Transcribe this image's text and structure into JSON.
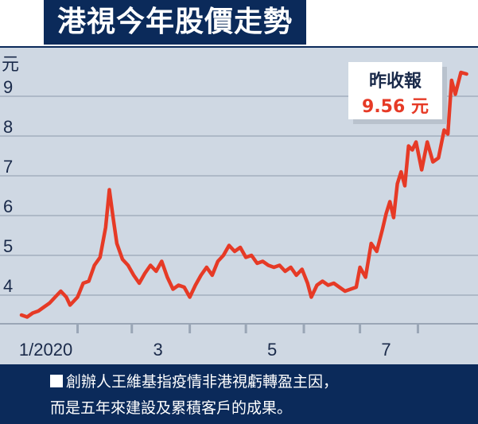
{
  "chart_data": {
    "type": "line",
    "title": "港視今年股價走勢",
    "ylabel": "元",
    "xlabel": "",
    "ylim": [
      3.3,
      10.0
    ],
    "yticks": [
      4,
      5,
      6,
      7,
      8,
      9
    ],
    "xlim": [
      "2020-01-02",
      "2020-08-31"
    ],
    "xticks": [
      {
        "date": "2020-01-15",
        "label": "1/2020"
      },
      {
        "date": "2020-03-15",
        "label": "3"
      },
      {
        "date": "2020-05-15",
        "label": "5"
      },
      {
        "date": "2020-07-15",
        "label": "7"
      }
    ],
    "grid": true,
    "series": [
      {
        "name": "",
        "color": "#e63a26",
        "points": [
          [
            "2020-01-02",
            3.5
          ],
          [
            "2020-01-05",
            3.45
          ],
          [
            "2020-01-08",
            3.55
          ],
          [
            "2020-01-11",
            3.6
          ],
          [
            "2020-01-14",
            3.7
          ],
          [
            "2020-01-17",
            3.8
          ],
          [
            "2020-01-20",
            3.95
          ],
          [
            "2020-01-23",
            4.1
          ],
          [
            "2020-01-26",
            3.95
          ],
          [
            "2020-01-28",
            3.75
          ],
          [
            "2020-02-01",
            3.95
          ],
          [
            "2020-02-04",
            4.3
          ],
          [
            "2020-02-07",
            4.35
          ],
          [
            "2020-02-10",
            4.75
          ],
          [
            "2020-02-13",
            4.95
          ],
          [
            "2020-02-16",
            5.7
          ],
          [
            "2020-02-18",
            6.65
          ],
          [
            "2020-02-20",
            5.95
          ],
          [
            "2020-02-22",
            5.3
          ],
          [
            "2020-02-25",
            4.9
          ],
          [
            "2020-02-28",
            4.75
          ],
          [
            "2020-03-02",
            4.5
          ],
          [
            "2020-03-05",
            4.3
          ],
          [
            "2020-03-08",
            4.55
          ],
          [
            "2020-03-11",
            4.75
          ],
          [
            "2020-03-14",
            4.6
          ],
          [
            "2020-03-17",
            4.85
          ],
          [
            "2020-03-20",
            4.45
          ],
          [
            "2020-03-23",
            4.15
          ],
          [
            "2020-03-26",
            4.25
          ],
          [
            "2020-03-29",
            4.2
          ],
          [
            "2020-04-01",
            3.95
          ],
          [
            "2020-04-04",
            4.25
          ],
          [
            "2020-04-07",
            4.5
          ],
          [
            "2020-04-10",
            4.7
          ],
          [
            "2020-04-13",
            4.5
          ],
          [
            "2020-04-16",
            4.85
          ],
          [
            "2020-04-19",
            5.0
          ],
          [
            "2020-04-22",
            5.25
          ],
          [
            "2020-04-25",
            5.1
          ],
          [
            "2020-04-28",
            5.2
          ],
          [
            "2020-05-01",
            4.95
          ],
          [
            "2020-05-04",
            5.0
          ],
          [
            "2020-05-07",
            4.8
          ],
          [
            "2020-05-10",
            4.85
          ],
          [
            "2020-05-13",
            4.75
          ],
          [
            "2020-05-16",
            4.7
          ],
          [
            "2020-05-19",
            4.75
          ],
          [
            "2020-05-22",
            4.6
          ],
          [
            "2020-05-25",
            4.7
          ],
          [
            "2020-05-28",
            4.5
          ],
          [
            "2020-05-31",
            4.65
          ],
          [
            "2020-06-03",
            4.3
          ],
          [
            "2020-06-05",
            3.95
          ],
          [
            "2020-06-08",
            4.25
          ],
          [
            "2020-06-11",
            4.35
          ],
          [
            "2020-06-14",
            4.25
          ],
          [
            "2020-06-17",
            4.3
          ],
          [
            "2020-06-20",
            4.2
          ],
          [
            "2020-06-23",
            4.1
          ],
          [
            "2020-06-26",
            4.15
          ],
          [
            "2020-06-29",
            4.2
          ],
          [
            "2020-07-01",
            4.7
          ],
          [
            "2020-07-04",
            4.45
          ],
          [
            "2020-07-07",
            5.3
          ],
          [
            "2020-07-10",
            5.1
          ],
          [
            "2020-07-13",
            5.65
          ],
          [
            "2020-07-15",
            6.05
          ],
          [
            "2020-07-17",
            6.35
          ],
          [
            "2020-07-19",
            5.95
          ],
          [
            "2020-07-21",
            6.8
          ],
          [
            "2020-07-23",
            7.1
          ],
          [
            "2020-07-25",
            6.75
          ],
          [
            "2020-07-27",
            7.75
          ],
          [
            "2020-07-29",
            7.65
          ],
          [
            "2020-07-31",
            7.85
          ],
          [
            "2020-08-03",
            7.15
          ],
          [
            "2020-08-06",
            7.85
          ],
          [
            "2020-08-09",
            7.35
          ],
          [
            "2020-08-12",
            7.45
          ],
          [
            "2020-08-15",
            8.15
          ],
          [
            "2020-08-17",
            8.05
          ],
          [
            "2020-08-19",
            9.4
          ],
          [
            "2020-08-21",
            9.05
          ],
          [
            "2020-08-24",
            9.6
          ],
          [
            "2020-08-27",
            9.56
          ]
        ]
      }
    ],
    "annotation": {
      "label": "昨收報",
      "value_text": "9.56 元",
      "label_color": "#1a2a4a",
      "value_color": "#e63a26"
    }
  },
  "caption": {
    "line1": "創辦人王維基指疫情非港視虧轉盈主因，",
    "line2": "而是五年來建設及累積客戶的成果。"
  },
  "colors": {
    "navy": "#0b2a5a",
    "plot_bg": "#cfd8e3",
    "grid": "#9aa6b6",
    "line": "#e63a26"
  }
}
